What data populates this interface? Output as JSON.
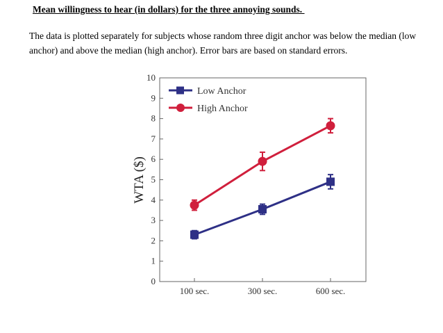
{
  "title": "Mean willingness to hear (in dollars) for the three annoying sounds. ",
  "description": "The data is plotted separately for subjects whose random three digit anchor was below the median (low anchor) and above the median (high anchor).  Error bars are based on standard errors.",
  "chart_data": {
    "type": "line",
    "categories": [
      "100 sec.",
      "300 sec.",
      "600 sec."
    ],
    "ylabel": "WTA ($)",
    "xlabel": "",
    "ylim": [
      0,
      10
    ],
    "yticks": [
      0,
      1,
      2,
      3,
      4,
      5,
      6,
      7,
      8,
      9,
      10
    ],
    "legend_position": "top-left",
    "grid": false,
    "series": [
      {
        "name": "Low Anchor",
        "color": "#2e3086",
        "marker": "square",
        "values": [
          2.3,
          3.55,
          4.9
        ],
        "errors": [
          0.2,
          0.25,
          0.35
        ]
      },
      {
        "name": "High Anchor",
        "color": "#d01f3c",
        "marker": "circle",
        "values": [
          3.75,
          5.9,
          7.65
        ],
        "errors": [
          0.25,
          0.45,
          0.35
        ]
      }
    ]
  }
}
